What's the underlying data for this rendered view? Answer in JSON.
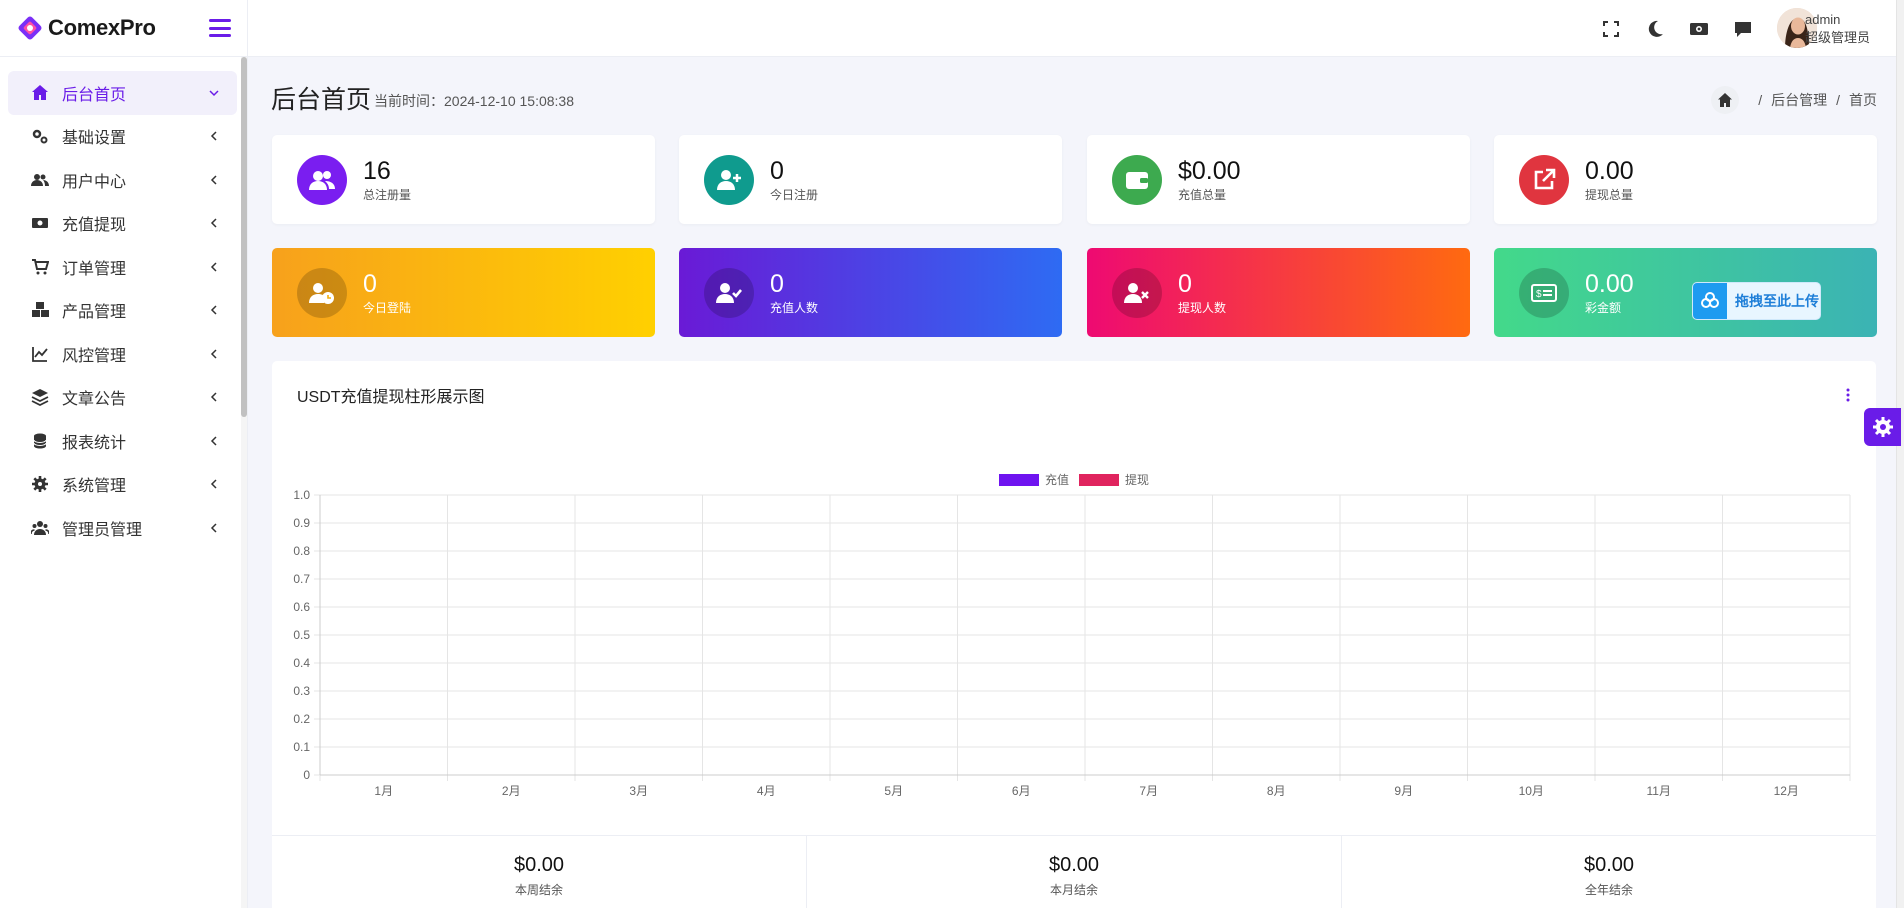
{
  "brand": {
    "name": "ComexPro"
  },
  "sidebar": {
    "items": [
      {
        "label": "后台首页",
        "icon": "home-icon",
        "active": true
      },
      {
        "label": "基础设置",
        "icon": "gears-icon"
      },
      {
        "label": "用户中心",
        "icon": "users-icon"
      },
      {
        "label": "充值提现",
        "icon": "money-icon"
      },
      {
        "label": "订单管理",
        "icon": "cart-icon"
      },
      {
        "label": "产品管理",
        "icon": "cubes-icon"
      },
      {
        "label": "风控管理",
        "icon": "line-chart-icon"
      },
      {
        "label": "文章公告",
        "icon": "layers-icon"
      },
      {
        "label": "报表统计",
        "icon": "database-icon"
      },
      {
        "label": "系统管理",
        "icon": "gear-icon"
      },
      {
        "label": "管理员管理",
        "icon": "user-group-icon"
      }
    ]
  },
  "topbar": {
    "icons": [
      "fullscreen-icon",
      "moon-icon",
      "money-icon",
      "message-icon"
    ],
    "user": {
      "name": "admin",
      "role": "超级管理员"
    }
  },
  "header": {
    "title": "后台首页",
    "time": "当前时间：2024-12-10 15:08:38",
    "breadcrumb": [
      "后台管理",
      "首页"
    ]
  },
  "stats": [
    {
      "value": "16",
      "label": "总注册量",
      "color": "#7a1ef0"
    },
    {
      "value": "0",
      "label": "今日注册",
      "color": "#0f9b8e"
    },
    {
      "value": "$0.00",
      "label": "充值总量",
      "color": "#3daa4f"
    },
    {
      "value": "0.00",
      "label": "提现总量",
      "color": "#e0353f"
    }
  ],
  "grad_stats": [
    {
      "value": "0",
      "label": "今日登陆",
      "from": "#f7a11c",
      "to": "#ffd000"
    },
    {
      "value": "0",
      "label": "充值人数",
      "from": "#6a1ad6",
      "to": "#2e6bf3"
    },
    {
      "value": "0",
      "label": "提现人数",
      "from": "#ee0a72",
      "to": "#ff6a10"
    },
    {
      "value": "0.00",
      "label": "彩金额",
      "from": "#43d98a",
      "to": "#3bb3b4"
    }
  ],
  "upload_button": {
    "label": "拖拽至此上传"
  },
  "chart_panel": {
    "title": "USDT充值提现柱形展示图"
  },
  "chart_data": {
    "type": "bar",
    "categories": [
      "1月",
      "2月",
      "3月",
      "4月",
      "5月",
      "6月",
      "7月",
      "8月",
      "9月",
      "10月",
      "11月",
      "12月"
    ],
    "series": [
      {
        "name": "充值",
        "values": [
          0,
          0,
          0,
          0,
          0,
          0,
          0,
          0,
          0,
          0,
          0,
          0
        ],
        "color": "#6f14f0"
      },
      {
        "name": "提现",
        "values": [
          0,
          0,
          0,
          0,
          0,
          0,
          0,
          0,
          0,
          0,
          0,
          0
        ],
        "color": "#e0245e"
      }
    ],
    "ylim": [
      0,
      1.0
    ],
    "yticks": [
      "0",
      "0.1",
      "0.2",
      "0.3",
      "0.4",
      "0.5",
      "0.6",
      "0.7",
      "0.8",
      "0.9",
      "1.0"
    ],
    "grid": true,
    "legend": "top-center"
  },
  "totals": [
    {
      "value": "$0.00",
      "label": "本周结余"
    },
    {
      "value": "$0.00",
      "label": "本月结余"
    },
    {
      "value": "$0.00",
      "label": "全年结余"
    }
  ]
}
